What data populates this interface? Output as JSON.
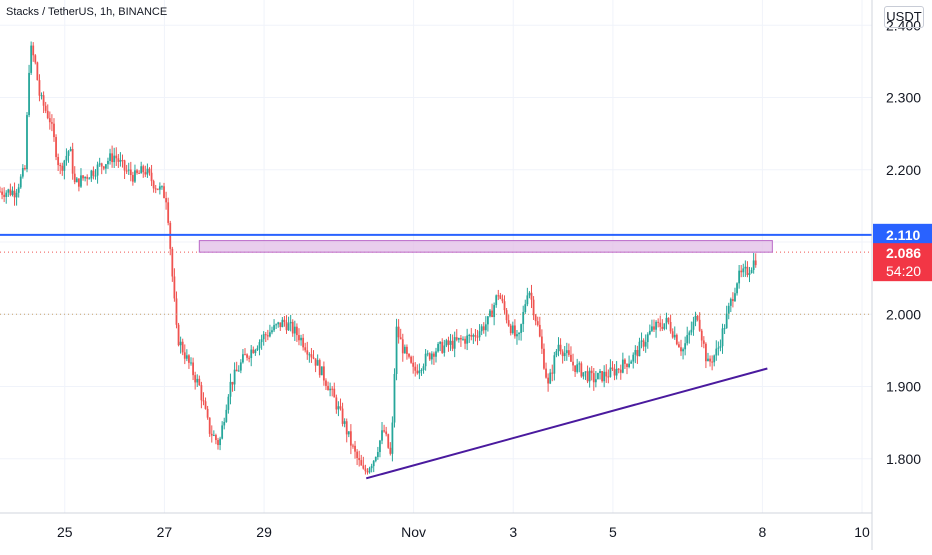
{
  "header": {
    "symbol_title": "Stacks / TetherUS, 1h, BINANCE",
    "currency_label": "USDT"
  },
  "colors": {
    "up": "#26a69a",
    "down": "#ef5350",
    "resistance_line": "#2962ff",
    "trend_line": "#4a1a9e",
    "zone_fill": "#e1bee7",
    "zone_stroke": "#ba68c8",
    "current_price_bg": "#f23645",
    "level_bg": "#2962ff"
  },
  "chart_data": {
    "type": "candlestick",
    "ylim": [
      1.725,
      2.435
    ],
    "y_ticks": [
      "2.400",
      "2.300",
      "2.200",
      "2.100",
      "2.000",
      "1.900",
      "1.800"
    ],
    "y_tick_values": [
      2.4,
      2.3,
      2.2,
      2.1,
      2.0,
      1.9,
      1.8
    ],
    "x_tick_labels": [
      "25",
      "27",
      "29",
      "Nov",
      "3",
      "5",
      "8",
      "10"
    ],
    "x_tick_days": [
      -6,
      -4,
      -2,
      1,
      3,
      5,
      8,
      10
    ],
    "x_range_days": [
      -7.3,
      10.2
    ],
    "price_path": [
      [
        -7.3,
        2.17
      ],
      [
        -7.0,
        2.17
      ],
      [
        -6.8,
        2.2
      ],
      [
        -6.7,
        2.37
      ],
      [
        -6.6,
        2.35
      ],
      [
        -6.5,
        2.3
      ],
      [
        -6.3,
        2.27
      ],
      [
        -6.1,
        2.2
      ],
      [
        -5.9,
        2.23
      ],
      [
        -5.8,
        2.18
      ],
      [
        -5.6,
        2.19
      ],
      [
        -5.4,
        2.2
      ],
      [
        -5.2,
        2.21
      ],
      [
        -5.0,
        2.22
      ],
      [
        -4.8,
        2.2
      ],
      [
        -4.6,
        2.19
      ],
      [
        -4.4,
        2.2
      ],
      [
        -4.2,
        2.18
      ],
      [
        -4.05,
        2.17
      ],
      [
        -3.95,
        2.16
      ],
      [
        -3.85,
        2.06
      ],
      [
        -3.75,
        1.97
      ],
      [
        -3.5,
        1.93
      ],
      [
        -3.3,
        1.9
      ],
      [
        -3.1,
        1.84
      ],
      [
        -2.9,
        1.82
      ],
      [
        -2.7,
        1.9
      ],
      [
        -2.4,
        1.94
      ],
      [
        -2.0,
        1.97
      ],
      [
        -1.6,
        1.99
      ],
      [
        -1.3,
        1.97
      ],
      [
        -1.0,
        1.94
      ],
      [
        -0.7,
        1.9
      ],
      [
        -0.4,
        1.85
      ],
      [
        -0.2,
        1.81
      ],
      [
        0.0,
        1.78
      ],
      [
        0.2,
        1.8
      ],
      [
        0.4,
        1.84
      ],
      [
        0.55,
        1.8
      ],
      [
        0.65,
        1.98
      ],
      [
        0.8,
        1.95
      ],
      [
        1.0,
        1.92
      ],
      [
        1.4,
        1.95
      ],
      [
        1.8,
        1.96
      ],
      [
        2.2,
        1.97
      ],
      [
        2.5,
        1.99
      ],
      [
        2.7,
        2.03
      ],
      [
        2.9,
        1.99
      ],
      [
        3.1,
        1.96
      ],
      [
        3.3,
        2.04
      ],
      [
        3.5,
        1.98
      ],
      [
        3.7,
        1.9
      ],
      [
        3.9,
        1.96
      ],
      [
        4.2,
        1.93
      ],
      [
        4.6,
        1.91
      ],
      [
        5.0,
        1.92
      ],
      [
        5.4,
        1.94
      ],
      [
        5.8,
        1.98
      ],
      [
        6.1,
        1.99
      ],
      [
        6.4,
        1.95
      ],
      [
        6.7,
        2.0
      ],
      [
        6.9,
        1.93
      ],
      [
        7.1,
        1.95
      ],
      [
        7.3,
        2.0
      ],
      [
        7.5,
        2.05
      ],
      [
        7.7,
        2.06
      ],
      [
        7.9,
        2.08
      ]
    ],
    "resistance_level": 2.11,
    "resistance_label": "2.110",
    "current_price": 2.086,
    "current_price_label": "2.086",
    "countdown_label": "54:20",
    "dotted_level": 2.0,
    "zone": {
      "x_start_days": -3.3,
      "x_end_days": 8.2,
      "y_low": 2.086,
      "y_high": 2.102
    },
    "trend_line": {
      "start": [
        0.05,
        1.773
      ],
      "end": [
        8.1,
        1.925
      ]
    },
    "grid": true
  }
}
